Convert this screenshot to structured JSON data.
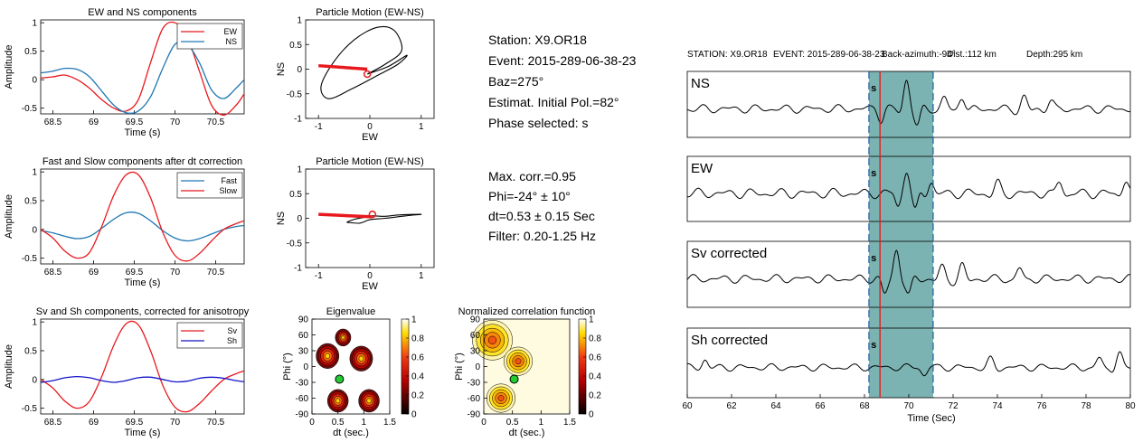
{
  "info": {
    "lines1": [
      "Station: X9.OR18",
      "Event: 2015-289-06-38-23",
      "Baz=275°",
      "Estimat. Initial Pol.=82°",
      "Phase selected: s"
    ],
    "lines2": [
      "Max. corr.=0.95",
      "Phi=-24° ± 10°",
      "dt=0.53 ± 0.15 Sec",
      "Filter: 0.20-1.25 Hz"
    ]
  },
  "colors": {
    "red": "#e8191e",
    "blue": "#1f77b4",
    "darkblue": "#1414c8",
    "teal": "#4f9a98",
    "green": "#22cc33"
  },
  "chart_data": [
    {
      "id": "ewns",
      "type": "line",
      "title": "EW and NS components",
      "xlabel": "Time (s)",
      "ylabel": "Amplitude",
      "xlim": [
        68.35,
        70.85
      ],
      "ylim": [
        -0.6,
        1.05
      ],
      "xticks": [
        "68.5",
        "69",
        "69.5",
        "70",
        "70.5"
      ],
      "xtickvals": [
        68.5,
        69,
        69.5,
        70,
        70.5
      ],
      "yticks": [
        "-0.5",
        "0",
        "0.5",
        "1"
      ],
      "ytickvals": [
        -0.5,
        0,
        0.5,
        1
      ],
      "legend_position": "top-right",
      "series": [
        {
          "name": "EW",
          "color": "#e8191e",
          "x": [
            68.35,
            68.5,
            68.65,
            68.8,
            68.95,
            69.1,
            69.25,
            69.4,
            69.55,
            69.7,
            69.85,
            70.0,
            70.15,
            70.3,
            70.45,
            70.6,
            70.75,
            70.85
          ],
          "y": [
            0.03,
            0.05,
            0.08,
            0.0,
            -0.15,
            -0.35,
            -0.5,
            -0.55,
            -0.35,
            0.3,
            0.9,
            1.0,
            0.75,
            0.15,
            -0.45,
            -0.62,
            -0.45,
            -0.25
          ]
        },
        {
          "name": "NS",
          "color": "#1f77b4",
          "x": [
            68.35,
            68.5,
            68.65,
            68.8,
            68.95,
            69.1,
            69.25,
            69.4,
            69.55,
            69.7,
            69.85,
            70.0,
            70.15,
            70.3,
            70.45,
            70.6,
            70.75,
            70.85
          ],
          "y": [
            0.12,
            0.15,
            0.2,
            0.18,
            0.05,
            -0.2,
            -0.45,
            -0.58,
            -0.55,
            -0.3,
            0.2,
            0.62,
            0.62,
            0.3,
            -0.18,
            -0.33,
            -0.15,
            0.0
          ]
        }
      ]
    },
    {
      "id": "fastslow",
      "type": "line",
      "title": "Fast and Slow components after dt correction",
      "xlabel": "Time (s)",
      "ylabel": "Amplitude",
      "xlim": [
        68.35,
        70.85
      ],
      "ylim": [
        -0.6,
        1.05
      ],
      "xticks": [
        "68.5",
        "69",
        "69.5",
        "70",
        "70.5"
      ],
      "xtickvals": [
        68.5,
        69,
        69.5,
        70,
        70.5
      ],
      "yticks": [
        "-0.5",
        "0",
        "0.5",
        "1"
      ],
      "ytickvals": [
        -0.5,
        0,
        0.5,
        1
      ],
      "legend_position": "top-right",
      "series": [
        {
          "name": "Fast",
          "color": "#1f77b4",
          "x": [
            68.35,
            68.5,
            68.65,
            68.8,
            68.95,
            69.1,
            69.25,
            69.4,
            69.55,
            69.7,
            69.85,
            70.0,
            70.15,
            70.3,
            70.45,
            70.6,
            70.75,
            70.85
          ],
          "y": [
            -0.02,
            -0.06,
            -0.12,
            -0.16,
            -0.12,
            0.02,
            0.18,
            0.29,
            0.28,
            0.15,
            -0.02,
            -0.15,
            -0.2,
            -0.16,
            -0.08,
            0.0,
            0.05,
            0.07
          ]
        },
        {
          "name": "Slow",
          "color": "#e8191e",
          "x": [
            68.35,
            68.5,
            68.65,
            68.8,
            68.95,
            69.1,
            69.25,
            69.4,
            69.55,
            69.7,
            69.85,
            70.0,
            70.15,
            70.3,
            70.45,
            70.6,
            70.75,
            70.85
          ],
          "y": [
            0.0,
            -0.15,
            -0.38,
            -0.5,
            -0.4,
            0.05,
            0.6,
            0.95,
            0.95,
            0.55,
            -0.05,
            -0.45,
            -0.55,
            -0.42,
            -0.2,
            0.0,
            0.1,
            0.15
          ]
        }
      ]
    },
    {
      "id": "svsh",
      "type": "line",
      "title": "Sv and Sh components, corrected for anisotropy",
      "xlabel": "Time (s)",
      "ylabel": "Amplitude",
      "xlim": [
        68.35,
        70.85
      ],
      "ylim": [
        -0.6,
        1.05
      ],
      "xticks": [
        "68.5",
        "69",
        "69.5",
        "70",
        "70.5"
      ],
      "xtickvals": [
        68.5,
        69,
        69.5,
        70,
        70.5
      ],
      "yticks": [
        "-0.5",
        "0",
        "0.5",
        "1"
      ],
      "ytickvals": [
        -0.5,
        0,
        0.5,
        1
      ],
      "legend_position": "top-right",
      "series": [
        {
          "name": "Sv",
          "color": "#e8191e",
          "x": [
            68.35,
            68.5,
            68.65,
            68.8,
            68.95,
            69.1,
            69.25,
            69.4,
            69.55,
            69.7,
            69.85,
            70.0,
            70.15,
            70.3,
            70.45,
            70.6,
            70.75,
            70.85
          ],
          "y": [
            0.0,
            -0.15,
            -0.38,
            -0.5,
            -0.38,
            0.05,
            0.6,
            0.97,
            0.95,
            0.5,
            -0.1,
            -0.48,
            -0.56,
            -0.42,
            -0.2,
            0.0,
            0.1,
            0.15
          ]
        },
        {
          "name": "Sh",
          "color": "#1414c8",
          "x": [
            68.35,
            68.5,
            68.65,
            68.8,
            68.95,
            69.1,
            69.25,
            69.4,
            69.55,
            69.7,
            69.85,
            70.0,
            70.15,
            70.3,
            70.45,
            70.6,
            70.75,
            70.85
          ],
          "y": [
            -0.05,
            -0.02,
            0.03,
            0.05,
            0.03,
            -0.02,
            -0.05,
            -0.02,
            0.03,
            0.04,
            0.0,
            -0.04,
            -0.03,
            0.02,
            0.04,
            0.02,
            -0.02,
            -0.04
          ]
        }
      ]
    },
    {
      "id": "pm1",
      "type": "line",
      "title": "Particle Motion (EW-NS)",
      "xlabel": "EW",
      "ylabel": "NS",
      "xlim": [
        -1.25,
        1.25
      ],
      "ylim": [
        -1,
        1
      ],
      "xticks": [
        "-1",
        "0",
        "1"
      ],
      "xtickvals": [
        -1,
        0,
        1
      ],
      "yticks": [
        "-1",
        "-0.5",
        "0",
        "0.5",
        "1"
      ],
      "ytickvals": [
        -1,
        -0.5,
        0,
        0.5,
        1
      ],
      "curve": {
        "x": [
          -0.05,
          0.3,
          0.62,
          0.48,
          0.15,
          -0.3,
          -0.7,
          -0.95,
          -0.8,
          -0.35,
          0.2,
          0.55,
          0.72,
          0.35,
          -0.05
        ],
        "y": [
          -0.1,
          0.1,
          0.38,
          0.78,
          0.85,
          0.6,
          0.15,
          -0.35,
          -0.6,
          -0.4,
          -0.1,
          0.1,
          0.28,
          0.05,
          -0.1
        ]
      },
      "polarization": {
        "x": [
          -1.0,
          -0.05
        ],
        "y": [
          0.07,
          0.0
        ]
      },
      "marker": {
        "x": -0.05,
        "y": -0.1
      }
    },
    {
      "id": "pm2",
      "type": "line",
      "title": "Particle Motion (EW-NS)",
      "xlabel": "EW",
      "ylabel": "NS",
      "xlim": [
        -1.25,
        1.25
      ],
      "ylim": [
        -1,
        1
      ],
      "xticks": [
        "-1",
        "0",
        "1"
      ],
      "xtickvals": [
        -1,
        0,
        1
      ],
      "yticks": [
        "-1",
        "-0.5",
        "0",
        "0.5",
        "1"
      ],
      "ytickvals": [
        -1,
        -0.5,
        0,
        0.5,
        1
      ],
      "curve": {
        "x": [
          -0.45,
          -0.3,
          -0.1,
          0.05,
          0.3,
          0.6,
          1.0,
          0.7,
          0.3,
          0.0,
          -0.2,
          -0.45
        ],
        "y": [
          -0.08,
          -0.02,
          0.02,
          0.05,
          0.04,
          0.07,
          0.08,
          0.05,
          0.0,
          -0.03,
          -0.1,
          -0.08
        ]
      },
      "polarization": {
        "x": [
          -1.0,
          0.05
        ],
        "y": [
          0.08,
          0.03
        ]
      },
      "marker": {
        "x": 0.05,
        "y": 0.08
      }
    },
    {
      "id": "eig",
      "type": "heatmap",
      "title": "Eigenvalue",
      "xlabel": "dt (sec.)",
      "ylabel": "Phi (°)",
      "xlim": [
        0,
        1.5
      ],
      "ylim": [
        -90,
        90
      ],
      "xticks": [
        "0",
        "0.5",
        "1",
        "1.5"
      ],
      "xtickvals": [
        0,
        0.5,
        1,
        1.5
      ],
      "yticks": [
        "-90",
        "-60",
        "-30",
        "0",
        "30",
        "60",
        "90"
      ],
      "ytickvals": [
        -90,
        -60,
        -30,
        0,
        30,
        60,
        90
      ],
      "colorbar": {
        "ticks": [
          "0",
          "0.2",
          "0.4",
          "0.6",
          "0.8",
          "1"
        ],
        "tickvals": [
          0,
          0.2,
          0.4,
          0.6,
          0.8,
          1
        ]
      },
      "peaks": [
        {
          "x": 0.3,
          "y": 20,
          "r": 0.22
        },
        {
          "x": 0.95,
          "y": 15,
          "r": 0.22
        },
        {
          "x": 0.5,
          "y": -65,
          "r": 0.2
        },
        {
          "x": 1.1,
          "y": -65,
          "r": 0.2
        },
        {
          "x": 0.6,
          "y": 55,
          "r": 0.15
        }
      ],
      "best": {
        "x": 0.53,
        "y": -24
      }
    },
    {
      "id": "ncorr",
      "type": "heatmap",
      "title": "Normalized correlation function",
      "xlabel": "dt (sec.)",
      "ylabel": "Phi (°)",
      "xlim": [
        0,
        1.5
      ],
      "ylim": [
        -90,
        90
      ],
      "xticks": [
        "0",
        "0.5",
        "1",
        "1.5"
      ],
      "xtickvals": [
        0,
        0.5,
        1,
        1.5
      ],
      "yticks": [
        "-90",
        "-60",
        "-30",
        "0",
        "30",
        "60",
        "90"
      ],
      "ytickvals": [
        -90,
        -60,
        -30,
        0,
        30,
        60,
        90
      ],
      "colorbar": {
        "ticks": [
          "0",
          "0.2",
          "0.4",
          "0.6",
          "0.8",
          "1"
        ],
        "tickvals": [
          0,
          0.2,
          0.4,
          0.6,
          0.8,
          1
        ]
      },
      "peaks": [
        {
          "x": 0.15,
          "y": 50,
          "r": 0.35
        },
        {
          "x": 0.6,
          "y": 10,
          "r": 0.25
        },
        {
          "x": 0.3,
          "y": -60,
          "r": 0.25
        }
      ],
      "best": {
        "x": 0.53,
        "y": -24
      }
    },
    {
      "id": "seis",
      "type": "line",
      "header": [
        "STATION: X9.OR18",
        "EVENT: 2015-289-06-38-23",
        "Back-azimuth:-94°",
        "Dist.:112 km",
        "Depth:295 km"
      ],
      "xlabel": "Time (Sec)",
      "xlim": [
        60,
        80
      ],
      "xticks": [
        "60",
        "62",
        "64",
        "66",
        "68",
        "70",
        "72",
        "74",
        "76",
        "78",
        "80"
      ],
      "xtickvals": [
        60,
        62,
        64,
        66,
        68,
        70,
        72,
        74,
        76,
        78,
        80
      ],
      "window": [
        68.2,
        71.1
      ],
      "pick": 68.7,
      "pick_label": "s",
      "traces": [
        {
          "name": "NS",
          "amp": 0.15,
          "peaks": [
            {
              "t": 68.75,
              "a": -0.35,
              "w": 0.25
            },
            {
              "t": 69.9,
              "a": 1.0,
              "w": 0.28
            },
            {
              "t": 70.4,
              "a": -0.55,
              "w": 0.25
            },
            {
              "t": 71.6,
              "a": 0.4,
              "w": 0.3
            },
            {
              "t": 72.4,
              "a": 0.45,
              "w": 0.3
            },
            {
              "t": 75.2,
              "a": 0.4,
              "w": 0.3
            },
            {
              "t": 76.4,
              "a": 0.3,
              "w": 0.3
            }
          ]
        },
        {
          "name": "EW",
          "amp": 0.18,
          "peaks": [
            {
              "t": 69.5,
              "a": -0.4,
              "w": 0.2
            },
            {
              "t": 69.9,
              "a": 0.8,
              "w": 0.25
            },
            {
              "t": 70.3,
              "a": -0.6,
              "w": 0.22
            },
            {
              "t": 71.0,
              "a": 0.4,
              "w": 0.25
            },
            {
              "t": 74.0,
              "a": 0.35,
              "w": 0.3
            },
            {
              "t": 76.8,
              "a": 0.45,
              "w": 0.3
            },
            {
              "t": 79.8,
              "a": 0.5,
              "w": 0.3
            }
          ]
        },
        {
          "name": "Sv corrected",
          "amp": 0.15,
          "peaks": [
            {
              "t": 68.9,
              "a": -0.5,
              "w": 0.25
            },
            {
              "t": 69.45,
              "a": 1.0,
              "w": 0.28
            },
            {
              "t": 70.0,
              "a": -0.55,
              "w": 0.25
            },
            {
              "t": 71.5,
              "a": 0.4,
              "w": 0.3
            },
            {
              "t": 72.4,
              "a": 0.45,
              "w": 0.3
            },
            {
              "t": 75.0,
              "a": 0.35,
              "w": 0.3
            }
          ]
        },
        {
          "name": "Sh corrected",
          "amp": 0.12,
          "peaks": [
            {
              "t": 60.8,
              "a": 0.25,
              "w": 0.25
            },
            {
              "t": 70.7,
              "a": -0.25,
              "w": 0.3
            },
            {
              "t": 73.7,
              "a": 0.25,
              "w": 0.3
            },
            {
              "t": 78.6,
              "a": 0.3,
              "w": 0.3
            },
            {
              "t": 79.5,
              "a": 0.5,
              "w": 0.3
            }
          ]
        }
      ]
    }
  ]
}
